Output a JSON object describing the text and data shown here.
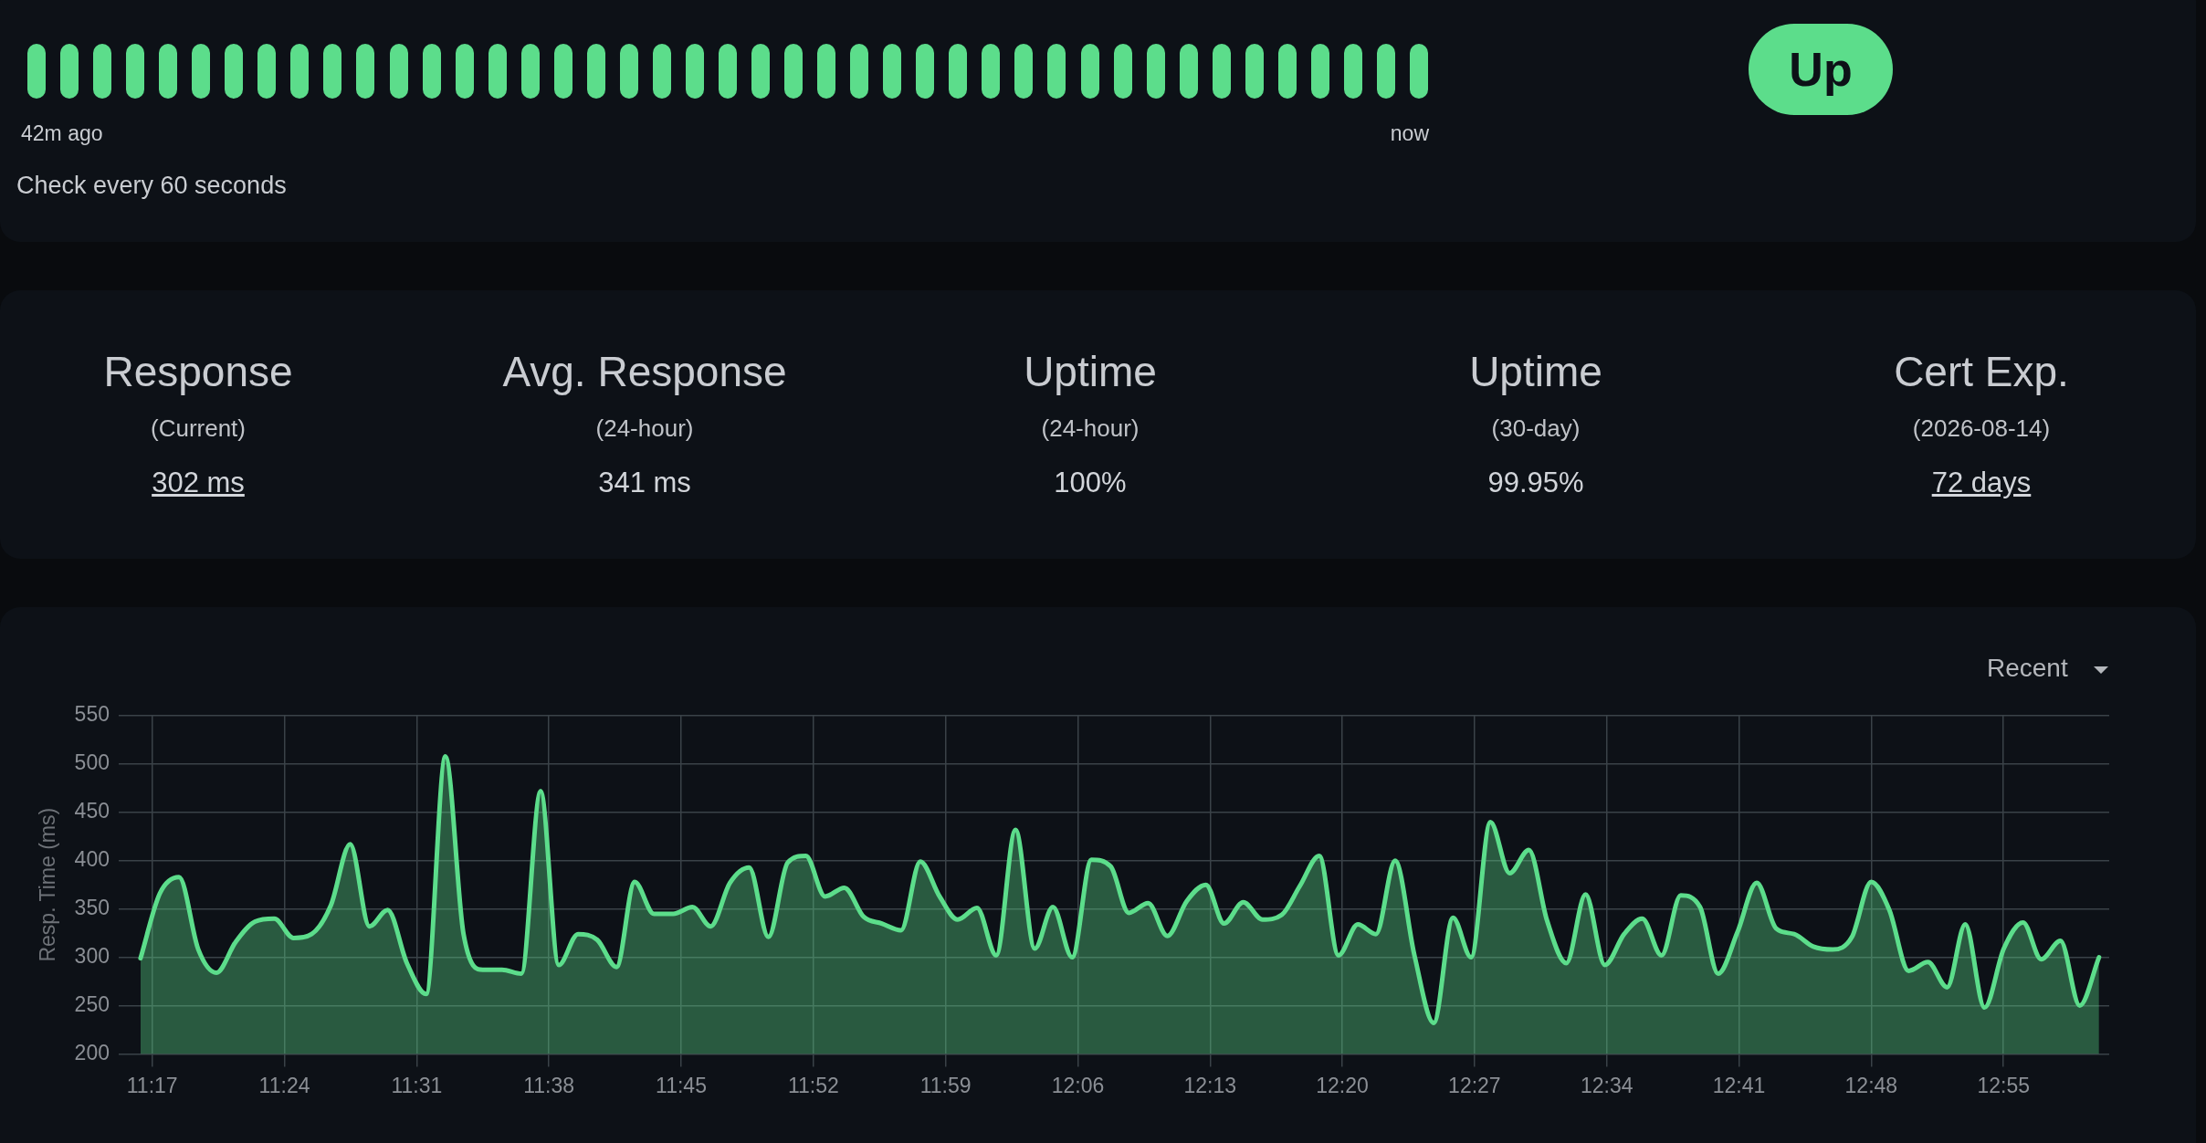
{
  "chart_data": [
    {
      "type": "other",
      "annotations": [
        "42m ago",
        "now",
        "Check every 60 seconds",
        "Up"
      ]
    },
    {
      "type": "other",
      "annotations": [
        "Response",
        "(Current)",
        "302 ms",
        "Avg. Response",
        "(24-hour)",
        "341 ms",
        "Uptime",
        "(24-hour)",
        "100%",
        "Uptime",
        "(30-day)",
        "99.95%",
        "Cert Exp.",
        "(2026-08-14)",
        "72 days"
      ]
    },
    {
      "type": "area",
      "ylabel": "Resp. Time (ms)",
      "annotations": [
        "Recent"
      ],
      "grid": true,
      "marker": "none",
      "line_style": "solid",
      "xlim": [
        11.265,
        13.01
      ],
      "ylim": [
        200,
        550
      ],
      "yticks": [
        200,
        250,
        300,
        350,
        400,
        450,
        500,
        550
      ],
      "xticks": [
        {
          "value": 11.2833,
          "label": "11:17"
        },
        {
          "value": 11.4,
          "label": "11:24"
        },
        {
          "value": 11.5167,
          "label": "11:31"
        },
        {
          "value": 11.6333,
          "label": "11:38"
        },
        {
          "value": 11.75,
          "label": "11:45"
        },
        {
          "value": 11.8667,
          "label": "11:52"
        },
        {
          "value": 11.9833,
          "label": "11:59"
        },
        {
          "value": 12.1,
          "label": "12:06"
        },
        {
          "value": 12.2167,
          "label": "12:13"
        },
        {
          "value": 12.3333,
          "label": "12:20"
        },
        {
          "value": 12.45,
          "label": "12:27"
        },
        {
          "value": 12.5667,
          "label": "12:34"
        },
        {
          "value": 12.6833,
          "label": "12:41"
        },
        {
          "value": 12.8,
          "label": "12:48"
        },
        {
          "value": 12.9167,
          "label": "12:55"
        }
      ],
      "x": [
        11.273,
        11.29,
        11.307,
        11.324,
        11.34,
        11.357,
        11.374,
        11.391,
        11.408,
        11.424,
        11.441,
        11.458,
        11.475,
        11.491,
        11.508,
        11.525,
        11.542,
        11.558,
        11.575,
        11.592,
        11.609,
        11.626,
        11.642,
        11.659,
        11.676,
        11.693,
        11.709,
        11.726,
        11.743,
        11.76,
        11.776,
        11.793,
        11.81,
        11.827,
        11.844,
        11.86,
        11.877,
        11.894,
        11.911,
        11.927,
        11.944,
        11.961,
        11.978,
        11.994,
        12.011,
        12.028,
        12.045,
        12.062,
        12.078,
        12.095,
        12.112,
        12.129,
        12.145,
        12.162,
        12.179,
        12.196,
        12.213,
        12.229,
        12.246,
        12.263,
        12.28,
        12.296,
        12.313,
        12.33,
        12.347,
        12.363,
        12.38,
        12.397,
        12.414,
        12.431,
        12.447,
        12.464,
        12.481,
        12.498,
        12.514,
        12.531,
        12.548,
        12.565,
        12.582,
        12.598,
        12.615,
        12.632,
        12.649,
        12.665,
        12.682,
        12.699,
        12.716,
        12.732,
        12.749,
        12.766,
        12.783,
        12.8,
        12.816,
        12.833,
        12.85,
        12.867,
        12.883,
        12.9,
        12.917,
        12.934,
        12.95,
        12.967,
        12.984,
        13.001
      ],
      "series": [
        {
          "color": "#5cdd8b",
          "values": [
            299,
            366,
            383,
            308,
            284,
            316,
            337,
            340,
            320,
            324,
            354,
            417,
            332,
            349,
            294,
            262,
            508,
            324,
            287,
            287,
            283,
            472,
            292,
            324,
            318,
            290,
            378,
            345,
            345,
            352,
            332,
            377,
            393,
            321,
            398,
            405,
            363,
            372,
            342,
            335,
            328,
            399,
            363,
            339,
            351,
            302,
            432,
            309,
            352,
            300,
            401,
            394,
            346,
            356,
            322,
            358,
            375,
            335,
            357,
            339,
            344,
            374,
            405,
            302,
            334,
            324,
            400,
            302,
            232,
            341,
            300,
            440,
            387,
            411,
            338,
            294,
            365,
            292,
            324,
            340,
            302,
            364,
            352,
            283,
            326,
            377,
            330,
            324,
            311,
            308,
            321,
            378,
            349,
            286,
            295,
            269,
            334,
            248,
            309,
            336,
            298,
            317,
            250,
            300
          ]
        }
      ]
    }
  ]
}
